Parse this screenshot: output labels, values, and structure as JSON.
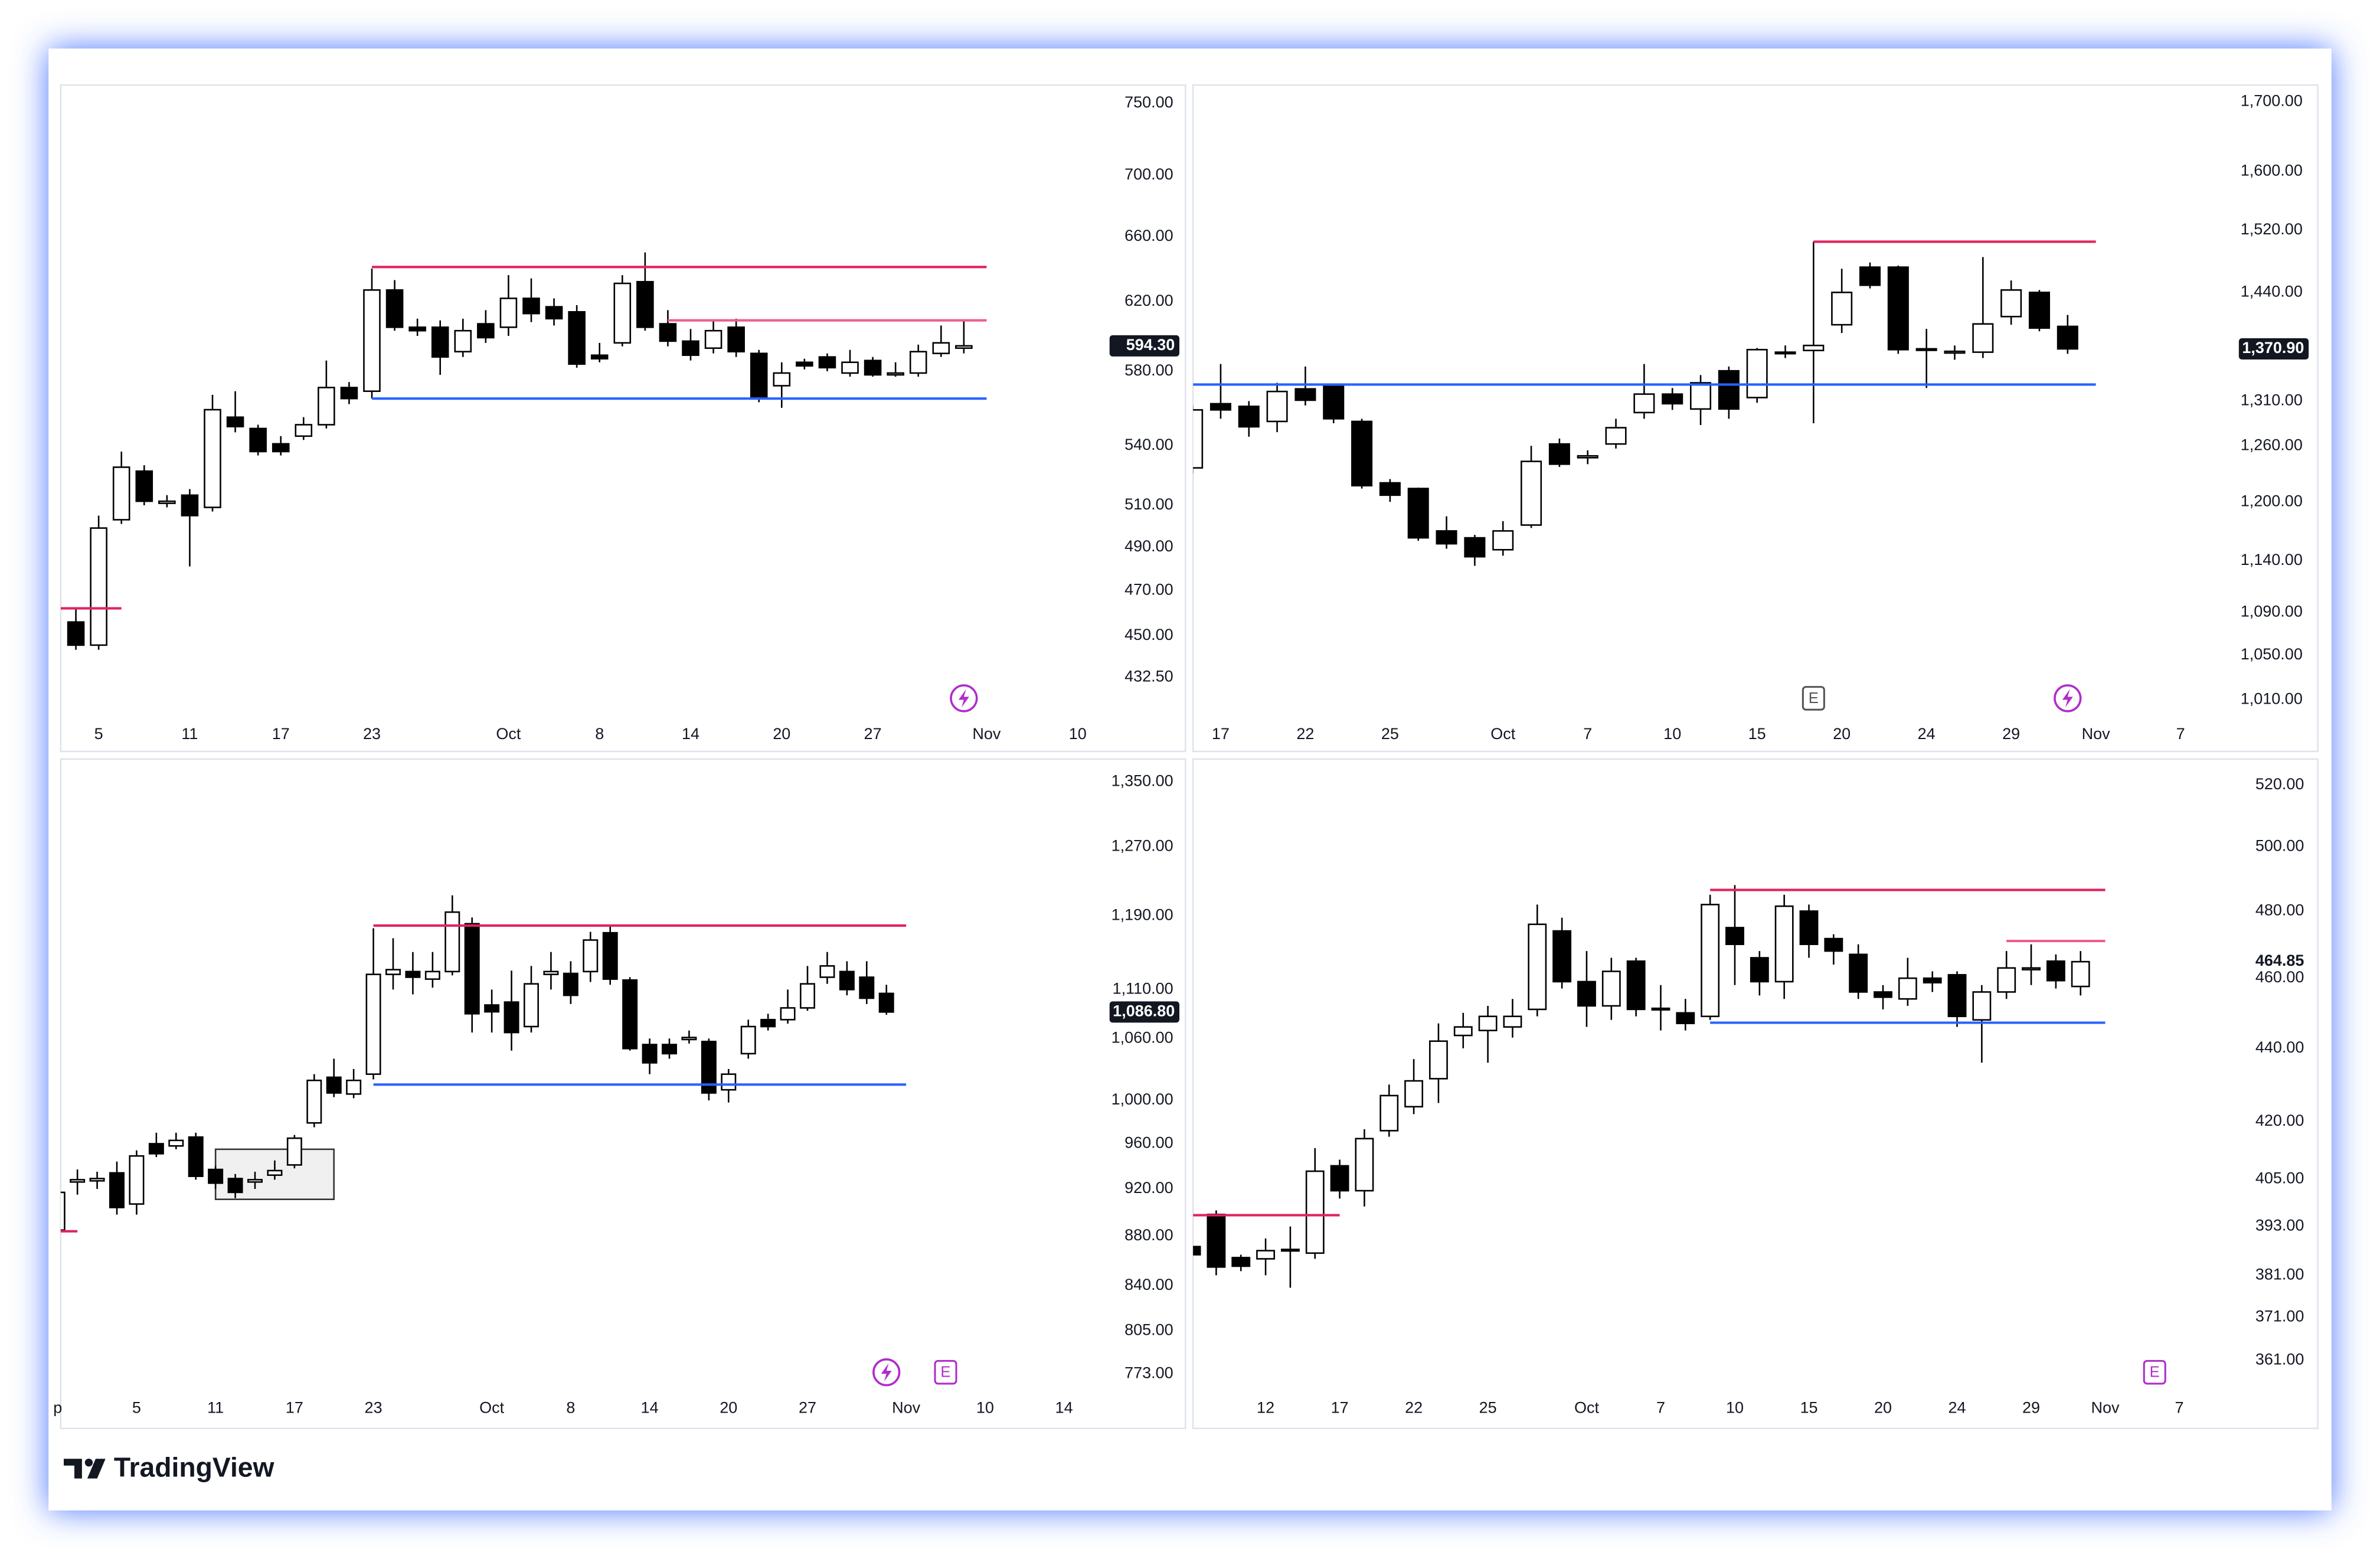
{
  "brand": "TradingView",
  "chart_data": [
    {
      "type": "candlestick",
      "log_scale": true,
      "grid": false,
      "up_color": "#ffffff",
      "down_color": "#000000",
      "ylim": [
        417.7,
        761
      ],
      "yticks": [
        {
          "value": 432.5,
          "label": "432.50"
        },
        {
          "value": 450,
          "label": "450.00"
        },
        {
          "value": 470,
          "label": "470.00"
        },
        {
          "value": 490,
          "label": "490.00"
        },
        {
          "value": 510,
          "label": "510.00"
        },
        {
          "value": 540,
          "label": "540.00"
        },
        {
          "value": 580,
          "label": "580.00"
        },
        {
          "value": 620,
          "label": "620.00"
        },
        {
          "value": 660,
          "label": "660.00"
        },
        {
          "value": 700,
          "label": "700.00"
        },
        {
          "value": 750,
          "label": "750.00"
        }
      ],
      "categories": [
        null,
        "5",
        null,
        null,
        null,
        "11",
        null,
        null,
        null,
        "17",
        null,
        null,
        null,
        "23",
        null,
        null,
        null,
        null,
        null,
        "Oct",
        null,
        null,
        null,
        "8",
        null,
        null,
        null,
        "14",
        null,
        null,
        null,
        "20",
        null,
        null,
        null,
        "27",
        null,
        null,
        null,
        null,
        "Nov",
        null,
        null,
        null,
        "10"
      ],
      "open": [
        456,
        446,
        503,
        527,
        511,
        515,
        509,
        555,
        549,
        541,
        545,
        551,
        571,
        569,
        627,
        605,
        605,
        591,
        607,
        605,
        622,
        617,
        614,
        589,
        596,
        632,
        607,
        597,
        593,
        605,
        590,
        572,
        585,
        588,
        579,
        586,
        578,
        579,
        590,
        593,
        null,
        null,
        null,
        null,
        null
      ],
      "high": [
        462,
        505,
        537,
        530,
        515,
        518,
        567,
        569,
        551,
        545,
        555,
        586,
        574,
        640,
        633,
        610,
        609,
        610,
        615,
        636,
        634,
        622,
        618,
        596,
        636,
        650,
        615,
        604,
        609,
        610,
        592,
        585,
        587,
        590,
        592,
        588,
        585,
        595,
        606,
        609,
        null,
        null,
        null,
        null,
        null
      ],
      "low": [
        444,
        444,
        501,
        510,
        509,
        481,
        507,
        547,
        535,
        535,
        543,
        549,
        562,
        565,
        603,
        600,
        578,
        588,
        596,
        600,
        608,
        606,
        582,
        585,
        594,
        603,
        594,
        586,
        590,
        588,
        563,
        560,
        581,
        580,
        577,
        577,
        577,
        577,
        588,
        590,
        null,
        null,
        null,
        null,
        null
      ],
      "close": [
        446,
        499,
        529,
        512,
        512,
        505,
        559,
        550,
        537,
        537,
        551,
        571,
        565,
        627,
        605,
        603,
        588,
        603,
        599,
        622,
        613,
        610,
        584,
        587,
        631,
        605,
        597,
        589,
        603,
        591,
        565,
        579,
        583,
        582,
        585,
        578,
        579,
        591,
        596,
        594.3,
        null,
        null,
        null,
        null,
        null
      ],
      "levels": [
        {
          "value": 641,
          "color": "#e0245e",
          "x": [
            13,
            40
          ]
        },
        {
          "value": 609,
          "color": "#ec5f8c",
          "x": [
            26,
            40
          ]
        },
        {
          "value": 565,
          "color": "#2962ff",
          "x": [
            13,
            40
          ]
        },
        {
          "value": 462,
          "color": "#e0245e",
          "x": [
            0,
            2
          ]
        }
      ],
      "events": [
        {
          "x": 39,
          "color": "#b02cc9"
        }
      ],
      "last_price": {
        "value": 594.3,
        "label": "594.30"
      },
      "last_price_box": true
    },
    {
      "type": "candlestick",
      "log_scale": true,
      "grid": false,
      "up_color": "#ffffff",
      "down_color": "#000000",
      "ylim": [
        998.1,
        1720.3
      ],
      "yticks": [
        {
          "value": 1010,
          "label": "1,010.00"
        },
        {
          "value": 1050,
          "label": "1,050.00"
        },
        {
          "value": 1090,
          "label": "1,090.00"
        },
        {
          "value": 1140,
          "label": "1,140.00"
        },
        {
          "value": 1200,
          "label": "1,200.00"
        },
        {
          "value": 1260,
          "label": "1,260.00"
        },
        {
          "value": 1310,
          "label": "1,310.00"
        },
        {
          "value": 1440,
          "label": "1,440.00"
        },
        {
          "value": 1520,
          "label": "1,520.00"
        },
        {
          "value": 1600,
          "label": "1,600.00"
        },
        {
          "value": 1700,
          "label": "1,700.00"
        }
      ],
      "categories": [
        null,
        "17",
        null,
        null,
        "22",
        null,
        null,
        "25",
        null,
        null,
        null,
        "Oct",
        null,
        null,
        "7",
        null,
        null,
        "10",
        null,
        null,
        "15",
        null,
        null,
        "20",
        null,
        null,
        "24",
        null,
        null,
        "29",
        null,
        null,
        "Nov",
        null,
        null,
        "7"
      ],
      "open": [
        1236,
        1307,
        1304,
        1287,
        1324,
        1327,
        1287,
        1220,
        1214,
        1170,
        1163,
        1151,
        1176,
        1262,
        1247,
        1262,
        1297,
        1318,
        1301,
        1345,
        1314,
        1366,
        1369,
        1400,
        1472,
        1472,
        1371,
        1366,
        1367,
        1410,
        1440,
        1398,
        null,
        null,
        null,
        null
      ],
      "high": [
        1305,
        1353,
        1310,
        1331,
        1350,
        1330,
        1290,
        1224,
        1215,
        1185,
        1166,
        1180,
        1260,
        1268,
        1255,
        1290,
        1353,
        1325,
        1340,
        1350,
        1372,
        1375,
        1505,
        1470,
        1478,
        1474,
        1395,
        1375,
        1485,
        1455,
        1443,
        1412,
        null,
        null,
        null,
        null
      ],
      "low": [
        1230,
        1290,
        1270,
        1275,
        1305,
        1285,
        1214,
        1200,
        1160,
        1152,
        1135,
        1145,
        1173,
        1237,
        1240,
        1257,
        1290,
        1300,
        1283,
        1290,
        1308,
        1360,
        1285,
        1390,
        1445,
        1365,
        1325,
        1358,
        1360,
        1400,
        1392,
        1365,
        null,
        null,
        null,
        null
      ],
      "close": [
        1300,
        1300,
        1281,
        1321,
        1311,
        1290,
        1217,
        1207,
        1163,
        1157,
        1144,
        1170,
        1243,
        1240,
        1249,
        1280,
        1318,
        1307,
        1331,
        1301,
        1370,
        1367,
        1375,
        1440,
        1449,
        1370,
        1370,
        1368,
        1401,
        1443,
        1396,
        1370.9,
        null,
        null,
        null,
        null
      ],
      "levels": [
        {
          "value": 1505,
          "color": "#e0245e",
          "x": [
            22,
            32
          ]
        },
        {
          "value": 1329,
          "color": "#2962ff",
          "x": [
            0,
            32
          ]
        }
      ],
      "events": [
        {
          "x": 22,
          "label": "E",
          "color": "#555555"
        },
        {
          "x": 31,
          "color": "#b02cc9"
        }
      ],
      "last_price": {
        "value": 1370.9,
        "label": "1,370.90"
      },
      "last_price_box": true
    },
    {
      "type": "candlestick",
      "log_scale": true,
      "grid": false,
      "up_color": "#ffffff",
      "down_color": "#000000",
      "ylim": [
        762,
        1375.3
      ],
      "yticks": [
        {
          "value": 773,
          "label": "773.00"
        },
        {
          "value": 805,
          "label": "805.00"
        },
        {
          "value": 840,
          "label": "840.00"
        },
        {
          "value": 880,
          "label": "880.00"
        },
        {
          "value": 920,
          "label": "920.00"
        },
        {
          "value": 960,
          "label": "960.00"
        },
        {
          "value": 1000,
          "label": "1,000.00"
        },
        {
          "value": 1060,
          "label": "1,060.00"
        },
        {
          "value": 1110,
          "label": "1,110.00"
        },
        {
          "value": 1190,
          "label": "1,190.00"
        },
        {
          "value": 1270,
          "label": "1,270.00"
        },
        {
          "value": 1350,
          "label": "1,350.00"
        }
      ],
      "categories": [
        "p",
        null,
        null,
        null,
        "5",
        null,
        null,
        null,
        "11",
        null,
        null,
        null,
        "17",
        null,
        null,
        null,
        "23",
        null,
        null,
        null,
        null,
        null,
        "Oct",
        null,
        null,
        null,
        "8",
        null,
        null,
        null,
        "14",
        null,
        null,
        null,
        "20",
        null,
        null,
        null,
        "27",
        null,
        null,
        null,
        null,
        "Nov",
        null,
        null,
        null,
        "10",
        null,
        null,
        null,
        "14"
      ],
      "open": [
        885,
        926,
        927,
        934,
        907,
        960,
        958,
        966,
        937,
        929,
        926,
        932,
        941,
        979,
        1022,
        1006,
        1025,
        1126,
        1129,
        1121,
        1129,
        1181,
        1094,
        1097,
        1072,
        1126,
        1127,
        1129,
        1171,
        1120,
        1054,
        1054,
        1059,
        1057,
        1010,
        1045,
        1079,
        1079,
        1091,
        1123,
        1129,
        1123,
        1106,
        null,
        null,
        null,
        null,
        null,
        null,
        null,
        null,
        null
      ],
      "high": [
        920,
        937,
        935,
        944,
        954,
        970,
        970,
        970,
        940,
        933,
        935,
        945,
        968,
        1025,
        1040,
        1030,
        1176,
        1165,
        1150,
        1150,
        1213,
        1188,
        1110,
        1130,
        1135,
        1150,
        1140,
        1172,
        1178,
        1123,
        1060,
        1060,
        1068,
        1060,
        1030,
        1079,
        1085,
        1110,
        1135,
        1150,
        1140,
        1140,
        1115,
        null,
        null,
        null,
        null,
        null,
        null,
        null,
        null,
        null
      ],
      "low": [
        870,
        915,
        920,
        898,
        898,
        948,
        955,
        928,
        920,
        912,
        920,
        928,
        938,
        975,
        1003,
        1002,
        1020,
        1110,
        1105,
        1112,
        1125,
        1066,
        1066,
        1048,
        1066,
        1110,
        1095,
        1118,
        1115,
        1048,
        1025,
        1040,
        1055,
        1000,
        998,
        1040,
        1068,
        1075,
        1088,
        1116,
        1104,
        1095,
        1084,
        null,
        null,
        null,
        null,
        null,
        null,
        null,
        null,
        null
      ],
      "close": [
        917,
        928,
        929,
        904,
        949,
        951,
        963,
        931,
        925,
        917,
        928,
        936,
        965,
        1019,
        1007,
        1019,
        1126,
        1131,
        1123,
        1129,
        1194,
        1085,
        1087,
        1066,
        1116,
        1129,
        1104,
        1163,
        1121,
        1050,
        1036,
        1045,
        1061,
        1007,
        1025,
        1072,
        1072,
        1091,
        1116,
        1135,
        1110,
        1101,
        1086.8,
        null,
        null,
        null,
        null,
        null,
        null,
        null,
        null,
        null
      ],
      "levels": [
        {
          "value": 1179,
          "color": "#e0245e",
          "x": [
            16,
            43
          ]
        },
        {
          "value": 1015,
          "color": "#2962ff",
          "x": [
            16,
            43
          ]
        },
        {
          "value": 884,
          "color": "#e0245e",
          "x": [
            0,
            1
          ]
        }
      ],
      "zone": {
        "x": [
          8,
          14
        ],
        "y": [
          911,
          955
        ]
      },
      "events": [
        {
          "x": 42,
          "color": "#b02cc9"
        },
        {
          "x": 45,
          "label": "E",
          "color": "#b02cc9"
        }
      ],
      "last_price": {
        "value": 1086.8,
        "label": "1,086.80"
      },
      "last_price_box": true
    },
    {
      "type": "candlestick",
      "log_scale": true,
      "grid": false,
      "up_color": "#ffffff",
      "down_color": "#000000",
      "ylim": [
        354.5,
        527.6
      ],
      "yticks": [
        {
          "value": 361,
          "label": "361.00"
        },
        {
          "value": 371,
          "label": "371.00"
        },
        {
          "value": 381,
          "label": "381.00"
        },
        {
          "value": 393,
          "label": "393.00"
        },
        {
          "value": 405,
          "label": "405.00"
        },
        {
          "value": 420,
          "label": "420.00"
        },
        {
          "value": 440,
          "label": "440.00"
        },
        {
          "value": 460,
          "label": "460.00"
        },
        {
          "value": 480,
          "label": "480.00"
        },
        {
          "value": 500,
          "label": "500.00"
        },
        {
          "value": 520,
          "label": "520.00"
        }
      ],
      "categories": [
        null,
        null,
        null,
        "12",
        null,
        null,
        "17",
        null,
        null,
        "22",
        null,
        null,
        "25",
        null,
        null,
        null,
        "Oct",
        null,
        null,
        "7",
        null,
        null,
        "10",
        null,
        null,
        "15",
        null,
        null,
        "20",
        null,
        null,
        "24",
        null,
        null,
        "29",
        null,
        null,
        "Nov",
        null,
        null,
        "7"
      ],
      "open": [
        388,
        396,
        385.3,
        385,
        387,
        386.4,
        408.4,
        402,
        417.6,
        424,
        431.6,
        443.6,
        445,
        446,
        451,
        474,
        459,
        452,
        465,
        451,
        450,
        449,
        475,
        466,
        459,
        480,
        471.7,
        467,
        456,
        454,
        460,
        461,
        448,
        456,
        462.5,
        465,
        457.6,
        null,
        null,
        null,
        null
      ],
      "high": [
        390,
        397,
        386,
        390,
        393,
        413,
        410,
        418,
        430,
        437,
        447,
        450,
        452,
        454,
        482,
        478,
        468,
        466,
        466,
        458,
        454,
        485,
        488,
        468,
        485,
        482,
        473,
        470,
        458,
        466,
        462,
        462,
        458,
        468,
        470,
        467,
        468,
        null,
        null,
        null,
        null
      ],
      "low": [
        384,
        381,
        382,
        381,
        378,
        385,
        400,
        398,
        416,
        422,
        425,
        440,
        436,
        443,
        449,
        457,
        446,
        448,
        449,
        445,
        445,
        448,
        458,
        455,
        454,
        466,
        464,
        454,
        451,
        452,
        456,
        446,
        436,
        454,
        458,
        457,
        455,
        null,
        null,
        null,
        null
      ],
      "close": [
        386,
        383,
        383.2,
        387,
        387.3,
        407,
        402,
        415.5,
        427,
        431,
        442,
        446,
        449,
        449,
        476,
        459,
        452,
        462,
        451,
        451.3,
        447,
        482,
        470,
        459,
        481.5,
        470,
        468,
        456,
        454.5,
        460,
        458.7,
        449,
        456,
        463,
        463,
        459.3,
        464.85,
        null,
        null,
        null,
        null
      ],
      "levels": [
        {
          "value": 486.5,
          "color": "#e0245e",
          "x": [
            21,
            37
          ]
        },
        {
          "value": 471,
          "color": "#ec5f8c",
          "x": [
            33,
            37
          ]
        },
        {
          "value": 447.2,
          "color": "#2962ff",
          "x": [
            21,
            37
          ]
        },
        {
          "value": 395.8,
          "color": "#e0245e",
          "x": [
            0,
            6
          ]
        }
      ],
      "events": [
        {
          "x": 39,
          "label": "E",
          "color": "#b02cc9"
        }
      ],
      "last_price": {
        "value": 464.85,
        "label": "464.85"
      },
      "last_price_box": false
    }
  ]
}
